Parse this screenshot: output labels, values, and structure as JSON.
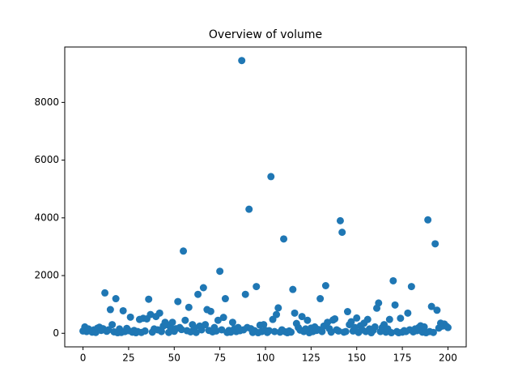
{
  "chart_data": {
    "type": "scatter",
    "title": "Overview of volume",
    "color": "#1f77b4",
    "x": [
      0,
      1,
      2,
      3,
      4,
      5,
      6,
      7,
      8,
      9,
      10,
      11,
      12,
      13,
      14,
      15,
      16,
      17,
      18,
      19,
      20,
      21,
      22,
      23,
      24,
      25,
      26,
      27,
      28,
      29,
      30,
      31,
      32,
      33,
      34,
      35,
      36,
      37,
      38,
      39,
      40,
      41,
      42,
      43,
      44,
      45,
      46,
      47,
      48,
      49,
      50,
      51,
      52,
      53,
      54,
      55,
      56,
      57,
      58,
      59,
      60,
      61,
      62,
      63,
      64,
      65,
      66,
      67,
      68,
      69,
      70,
      71,
      72,
      73,
      74,
      75,
      76,
      77,
      78,
      79,
      80,
      81,
      82,
      83,
      84,
      85,
      86,
      87,
      88,
      89,
      90,
      91,
      92,
      93,
      94,
      95,
      96,
      97,
      98,
      99,
      100,
      101,
      102,
      103,
      104,
      105,
      106,
      107,
      108,
      109,
      110,
      111,
      112,
      113,
      114,
      115,
      116,
      117,
      118,
      119,
      120,
      121,
      122,
      123,
      124,
      125,
      126,
      127,
      128,
      129,
      130,
      131,
      132,
      133,
      134,
      135,
      136,
      137,
      138,
      139,
      140,
      141,
      142,
      143,
      144,
      145,
      146,
      147,
      148,
      149,
      150,
      151,
      152,
      153,
      154,
      155,
      156,
      157,
      158,
      159,
      160,
      161,
      162,
      163,
      164,
      165,
      166,
      167,
      168,
      169,
      170,
      171,
      172,
      173,
      174,
      175,
      176,
      177,
      178,
      179,
      180,
      181,
      182,
      183,
      184,
      185,
      186,
      187,
      188,
      189,
      190,
      191,
      192,
      193,
      194,
      195,
      196,
      197,
      198,
      199,
      200
    ],
    "values": [
      80,
      220,
      60,
      150,
      90,
      40,
      120,
      30,
      180,
      210,
      100,
      160,
      1400,
      70,
      120,
      820,
      300,
      50,
      1200,
      20,
      150,
      30,
      780,
      60,
      170,
      90,
      560,
      40,
      100,
      20,
      60,
      480,
      30,
      520,
      80,
      500,
      1180,
      650,
      40,
      150,
      580,
      120,
      700,
      60,
      250,
      380,
      300,
      30,
      200,
      380,
      70,
      160,
      1100,
      200,
      130,
      2850,
      450,
      90,
      900,
      50,
      300,
      200,
      30,
      1350,
      250,
      120,
      1580,
      300,
      820,
      100,
      760,
      50,
      200,
      80,
      450,
      2150,
      120,
      550,
      1200,
      30,
      100,
      40,
      380,
      160,
      60,
      200,
      90,
      9450,
      120,
      1350,
      200,
      4300,
      160,
      30,
      90,
      1620,
      20,
      280,
      60,
      300,
      100,
      30,
      90,
      5430,
      480,
      60,
      650,
      880,
      40,
      120,
      3270,
      50,
      20,
      80,
      40,
      1520,
      700,
      340,
      200,
      110,
      580,
      60,
      150,
      450,
      20,
      180,
      60,
      220,
      100,
      130,
      1200,
      60,
      250,
      1650,
      380,
      160,
      40,
      460,
      500,
      120,
      80,
      3900,
      3500,
      40,
      60,
      750,
      300,
      400,
      80,
      200,
      530,
      30,
      260,
      120,
      350,
      60,
      480,
      150,
      20,
      100,
      220,
      870,
      1050,
      60,
      200,
      300,
      40,
      150,
      480,
      20,
      1820,
      980,
      60,
      20,
      520,
      40,
      90,
      60,
      700,
      120,
      1620,
      50,
      150,
      90,
      200,
      260,
      40,
      220,
      20,
      3930,
      60,
      930,
      30,
      3100,
      800,
      180,
      350,
      250,
      320,
      250,
      200
    ],
    "xlim": [
      -10,
      210
    ],
    "xticks": [
      0,
      25,
      50,
      75,
      100,
      125,
      150,
      175,
      200
    ],
    "ylim": [
      -470,
      9920
    ],
    "yticks": [
      0,
      2000,
      4000,
      6000,
      8000
    ]
  }
}
